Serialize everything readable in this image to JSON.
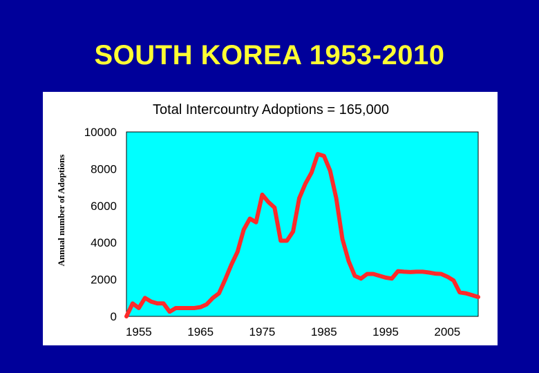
{
  "slide": {
    "title": "SOUTH KOREA 1953-2010"
  },
  "chart_data": {
    "type": "line",
    "title": "Total Intercountry Adoptions = 165,000",
    "xlabel": "",
    "ylabel": "Annual number of Adoptions",
    "xlim": [
      1953,
      2010
    ],
    "ylim": [
      0,
      10000
    ],
    "x_ticks": [
      1955,
      1965,
      1975,
      1985,
      1995,
      2005
    ],
    "y_ticks": [
      0,
      2000,
      4000,
      6000,
      8000,
      10000
    ],
    "grid": false,
    "legend": "none",
    "plot_background": "#00ffff",
    "line_color": "#ff2a2a",
    "series": [
      {
        "x": [
          1953,
          1954,
          1955,
          1956,
          1957,
          1958,
          1959,
          1960,
          1961,
          1962,
          1963,
          1964,
          1965,
          1966,
          1967,
          1968,
          1969,
          1970,
          1971,
          1972,
          1973,
          1974,
          1975,
          1976,
          1977,
          1978,
          1979,
          1980,
          1981,
          1982,
          1983,
          1984,
          1985,
          1986,
          1987,
          1988,
          1989,
          1990,
          1991,
          1992,
          1993,
          1994,
          1995,
          1996,
          1997,
          1998,
          1999,
          2000,
          2001,
          2002,
          2003,
          2004,
          2005,
          2006,
          2007,
          2008,
          2009,
          2010
        ],
        "y": [
          0,
          700,
          450,
          1000,
          800,
          700,
          700,
          250,
          450,
          450,
          450,
          450,
          500,
          650,
          1000,
          1250,
          2000,
          2800,
          3500,
          4700,
          5300,
          5100,
          6600,
          6200,
          5900,
          4100,
          4100,
          4600,
          6400,
          7200,
          7800,
          8800,
          8700,
          7900,
          6400,
          4200,
          3000,
          2200,
          2050,
          2300,
          2300,
          2200,
          2100,
          2050,
          2450,
          2420,
          2400,
          2420,
          2420,
          2380,
          2320,
          2300,
          2150,
          1950,
          1300,
          1250,
          1150,
          1050
        ]
      }
    ]
  }
}
